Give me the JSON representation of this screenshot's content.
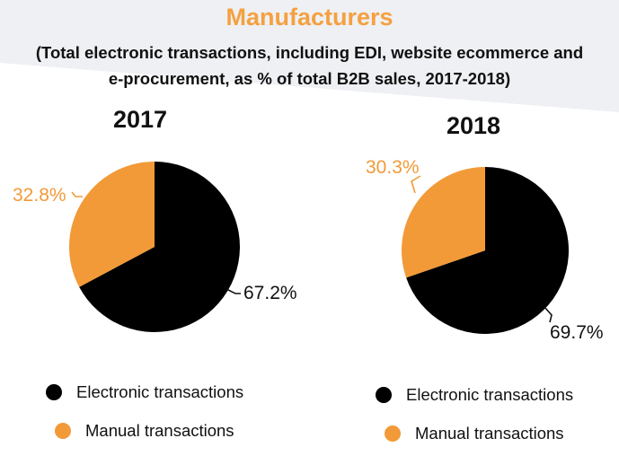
{
  "page": {
    "title": "Manufacturers",
    "subtitle_line1": "(Total electronic transactions, including EDI, website ecommerce and",
    "subtitle_line2": "e-procurement, as % of total B2B sales, 2017-2018)"
  },
  "colors": {
    "accent": "#f5a040",
    "electronic": "#000000",
    "manual": "#f29a38",
    "background_stripe": "#eef0f3",
    "text": "#111111"
  },
  "chart_data": [
    {
      "type": "pie",
      "title": "2017",
      "categories": [
        "Electronic transactions",
        "Manual transactions"
      ],
      "values": [
        67.2,
        32.8
      ],
      "labels": [
        "67.2%",
        "32.8%"
      ],
      "legend": [
        "Electronic transactions",
        "Manual transactions"
      ]
    },
    {
      "type": "pie",
      "title": "2018",
      "categories": [
        "Electronic transactions",
        "Manual transactions"
      ],
      "values": [
        69.7,
        30.3
      ],
      "labels": [
        "69.7%",
        "30.3%"
      ],
      "legend": [
        "Electronic transactions",
        "Manual transactions"
      ]
    }
  ]
}
